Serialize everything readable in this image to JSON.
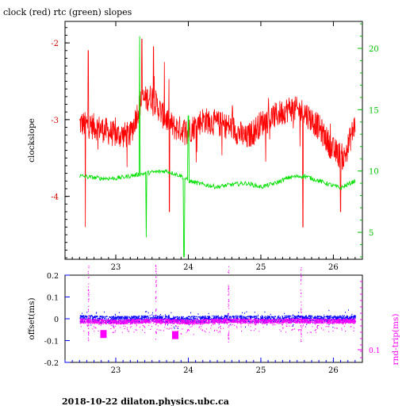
{
  "title": "clock (red) rtc (green) slopes",
  "footer": "2018-10-22  dilaton.physics.ubc.ca",
  "colors": {
    "clock": "#ff0000",
    "rtc": "#00e000",
    "offset": "#0000ff",
    "rndtrip": "#ff00ff",
    "axis_red": "#d00000",
    "axis_green": "#00c000"
  },
  "chart_data": [
    {
      "type": "line",
      "title": "clock (red) rtc (green) slopes",
      "ylabel": "clockslope",
      "xlim": [
        22.3,
        26.4
      ],
      "ylim": [
        -4.82,
        -1.72
      ],
      "y2lim": [
        2.8,
        22.2
      ],
      "x_ticks": [
        23,
        24,
        25,
        26
      ],
      "y_ticks": [
        -2,
        -3,
        -4
      ],
      "y2_ticks": [
        5,
        10,
        15,
        20
      ],
      "series": [
        {
          "name": "clock",
          "color": "#ff0000",
          "x": [
            22.5,
            22.75,
            23.0,
            23.2,
            23.35,
            23.5,
            23.65,
            23.8,
            24.0,
            24.2,
            24.4,
            24.6,
            24.8,
            25.0,
            25.2,
            25.4,
            25.6,
            25.8,
            26.0,
            26.15,
            26.3
          ],
          "y": [
            -3.05,
            -3.1,
            -3.2,
            -3.2,
            -2.75,
            -2.7,
            -2.95,
            -3.1,
            -3.15,
            -3.0,
            -3.05,
            -3.1,
            -3.25,
            -3.05,
            -2.95,
            -2.85,
            -2.9,
            -3.1,
            -3.4,
            -3.5,
            -3.05
          ]
        },
        {
          "name": "rtc",
          "color": "#00e000",
          "axis": "right",
          "x": [
            22.5,
            22.8,
            23.0,
            23.2,
            23.5,
            23.7,
            23.9,
            24.0,
            24.2,
            24.4,
            24.6,
            24.8,
            25.0,
            25.2,
            25.4,
            25.6,
            25.8,
            26.0,
            26.1,
            26.3
          ],
          "y": [
            9.6,
            9.4,
            9.4,
            9.6,
            9.9,
            10.0,
            9.6,
            9.2,
            8.9,
            8.7,
            8.9,
            9.0,
            8.7,
            9.0,
            9.5,
            9.6,
            9.2,
            8.8,
            8.6,
            9.2
          ]
        }
      ]
    },
    {
      "type": "scatter",
      "ylabel": "offset(ms)",
      "y2label": "rnd-trip(ms)",
      "xlim": [
        22.3,
        26.4
      ],
      "ylim": [
        -0.2,
        0.2
      ],
      "x_ticks": [
        23,
        24,
        25,
        26
      ],
      "y_ticks": [
        "0.2",
        "0.1",
        "0",
        "-0.1",
        "-0.2"
      ],
      "y2_ticks": [
        "0.1"
      ],
      "series": [
        {
          "name": "offset",
          "color": "#0000ff",
          "x": [
            22.5,
            23.0,
            23.5,
            24.0,
            24.5,
            25.0,
            25.5,
            26.0,
            26.3
          ],
          "y": [
            0.0,
            -0.005,
            0.0,
            -0.005,
            0.0,
            -0.003,
            0.0,
            -0.002,
            0.0
          ]
        },
        {
          "name": "rnd-trip",
          "color": "#ff00ff",
          "x": [
            22.5,
            23.0,
            23.5,
            24.0,
            24.5,
            25.0,
            25.5,
            26.0,
            26.3
          ],
          "y": [
            -0.01,
            -0.015,
            -0.01,
            -0.015,
            -0.01,
            -0.012,
            -0.01,
            -0.012,
            -0.01
          ]
        }
      ]
    }
  ]
}
